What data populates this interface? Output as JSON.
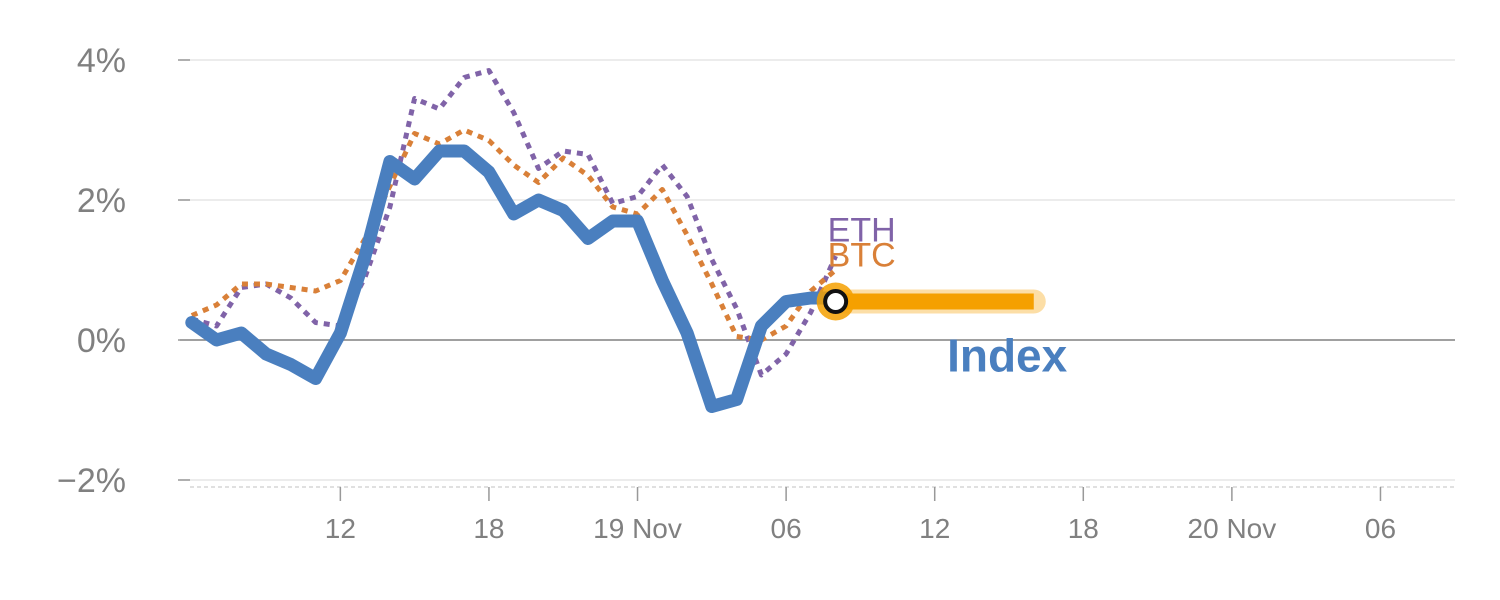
{
  "chart_data": {
    "type": "line",
    "title": "",
    "xlabel": "",
    "ylabel": "",
    "y_unit": "%",
    "ylim": [
      -2,
      4
    ],
    "y_ticks": [
      {
        "value": -2,
        "label": "−2%"
      },
      {
        "value": 0,
        "label": "0%"
      },
      {
        "value": 2,
        "label": "2%"
      },
      {
        "value": 4,
        "label": "4%"
      }
    ],
    "x_range_hours": [
      5,
      56
    ],
    "x_ticks": [
      {
        "hour": 12,
        "label": "12"
      },
      {
        "hour": 18,
        "label": "18"
      },
      {
        "hour": 24,
        "label": "19 Nov"
      },
      {
        "hour": 30,
        "label": "06"
      },
      {
        "hour": 36,
        "label": "12"
      },
      {
        "hour": 42,
        "label": "18"
      },
      {
        "hour": 48,
        "label": "20 Nov"
      },
      {
        "hour": 54,
        "label": "06"
      }
    ],
    "grid": true,
    "series": [
      {
        "name": "ETH",
        "color": "#8063a8",
        "style": "dotted",
        "x": [
          6,
          7,
          8,
          9,
          10,
          11,
          12,
          13,
          14,
          15,
          16,
          17,
          18,
          19,
          20,
          21,
          22,
          23,
          24,
          25,
          26,
          27,
          28,
          29,
          30,
          31,
          32
        ],
        "y": [
          0.3,
          0.2,
          0.75,
          0.8,
          0.6,
          0.25,
          0.2,
          0.9,
          1.9,
          3.45,
          3.3,
          3.75,
          3.85,
          3.25,
          2.45,
          2.7,
          2.65,
          1.95,
          2.05,
          2.5,
          2.05,
          1.15,
          0.45,
          -0.5,
          -0.2,
          0.4,
          1.2
        ]
      },
      {
        "name": "BTC",
        "color": "#d98038",
        "style": "dotted",
        "x": [
          6,
          7,
          8,
          9,
          10,
          11,
          12,
          13,
          14,
          15,
          16,
          17,
          18,
          19,
          20,
          21,
          22,
          23,
          24,
          25,
          26,
          27,
          28,
          29,
          30,
          31,
          32
        ],
        "y": [
          0.35,
          0.5,
          0.8,
          0.8,
          0.75,
          0.7,
          0.85,
          1.45,
          2.2,
          2.95,
          2.8,
          3.0,
          2.85,
          2.5,
          2.25,
          2.6,
          2.35,
          1.9,
          1.8,
          2.15,
          1.5,
          0.8,
          0.05,
          0.0,
          0.2,
          0.7,
          1.0
        ]
      },
      {
        "name": "Index",
        "color": "#4a7fbf",
        "style": "solid",
        "x": [
          6,
          7,
          8,
          9,
          10,
          11,
          12,
          13,
          14,
          15,
          16,
          17,
          18,
          19,
          20,
          21,
          22,
          23,
          24,
          25,
          26,
          27,
          28,
          29,
          30,
          31,
          32
        ],
        "y": [
          0.25,
          0.0,
          0.1,
          -0.2,
          -0.35,
          -0.55,
          0.1,
          1.2,
          2.55,
          2.3,
          2.7,
          2.7,
          2.4,
          1.8,
          2.0,
          1.85,
          1.45,
          1.7,
          1.7,
          0.85,
          0.1,
          -0.95,
          -0.85,
          0.2,
          0.55,
          0.6,
          0.6
        ]
      }
    ],
    "current_point": {
      "x": 32,
      "y": 0.55,
      "color": "#f5a000"
    },
    "projection_band": {
      "x_start": 32,
      "x_end": 40,
      "y": 0.55,
      "color": "#f5a000"
    },
    "labels": [
      {
        "series": "ETH",
        "text": "ETH",
        "color": "#8063a8"
      },
      {
        "series": "BTC",
        "text": "BTC",
        "color": "#d98038"
      },
      {
        "series": "Index",
        "text": "Index",
        "color": "#4a7fbf"
      }
    ]
  }
}
